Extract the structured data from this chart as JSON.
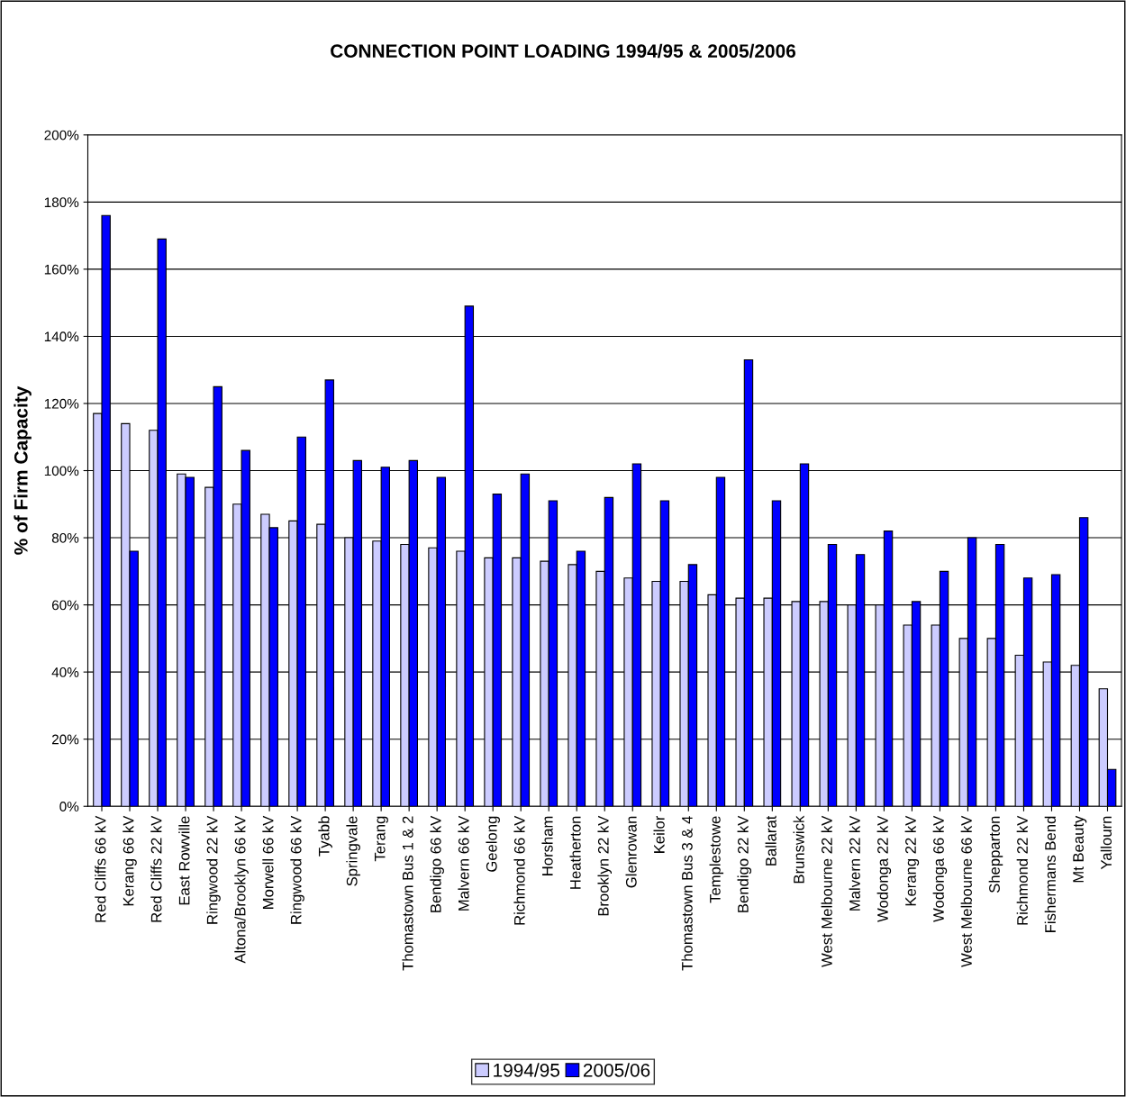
{
  "chart_data": {
    "type": "bar",
    "title": "CONNECTION POINT LOADING 1994/95 & 2005/2006",
    "ylabel": "% of Firm Capacity",
    "categories": [
      "Red Cliffs 66 kV",
      "Kerang 66 kV",
      "Red Cliffs 22 kV",
      "East Rowville",
      "Ringwood 22 kV",
      "Altona/Brooklyn 66 kV",
      "Morwell 66 kV",
      "Ringwood 66 kV",
      "Tyabb",
      "Springvale",
      "Terang",
      "Thomastown Bus 1 & 2",
      "Bendigo 66 kV",
      "Malvern 66 kV",
      "Geelong",
      "Richmond 66 kV",
      "Horsham",
      "Heatherton",
      "Brooklyn 22 kV",
      "Glenrowan",
      "Keilor",
      "Thomastown Bus 3 & 4",
      "Templestowe",
      "Bendigo 22 kV",
      "Ballarat",
      "Brunswick",
      "West Melbourne 22 kV",
      "Malvern 22 kV",
      "Wodonga 22 kV",
      "Kerang 22 kV",
      "Wodonga 66 kV",
      "West Melbourne 66 kV",
      "Shepparton",
      "Richmond 22 kV",
      "Fishermans Bend",
      "Mt Beauty",
      "Yallourn"
    ],
    "series": [
      {
        "name": "1994/95",
        "color": "#ccccff",
        "values": [
          117,
          114,
          112,
          99,
          95,
          90,
          87,
          85,
          84,
          80,
          79,
          78,
          77,
          76,
          74,
          74,
          73,
          72,
          70,
          68,
          67,
          67,
          63,
          62,
          62,
          61,
          61,
          60,
          60,
          54,
          54,
          50,
          50,
          45,
          43,
          42,
          35
        ]
      },
      {
        "name": "2005/06",
        "color": "#0000ff",
        "values": [
          176,
          76,
          169,
          98,
          125,
          106,
          83,
          110,
          127,
          103,
          101,
          103,
          98,
          149,
          93,
          99,
          91,
          76,
          92,
          102,
          91,
          72,
          98,
          133,
          91,
          102,
          78,
          75,
          82,
          61,
          70,
          80,
          78,
          68,
          69,
          86,
          11
        ]
      }
    ],
    "ylim": [
      0,
      200
    ],
    "yticks": [
      {
        "value": 0,
        "label": "0%"
      },
      {
        "value": 20,
        "label": "20%"
      },
      {
        "value": 40,
        "label": "40%"
      },
      {
        "value": 60,
        "label": "60%"
      },
      {
        "value": 80,
        "label": "80%"
      },
      {
        "value": 100,
        "label": "100%"
      },
      {
        "value": 120,
        "label": "120%"
      },
      {
        "value": 140,
        "label": "140%"
      },
      {
        "value": 160,
        "label": "160%"
      },
      {
        "value": 180,
        "label": "180%"
      },
      {
        "value": 200,
        "label": "200%"
      }
    ],
    "grid": "y",
    "legend": "bottom"
  }
}
